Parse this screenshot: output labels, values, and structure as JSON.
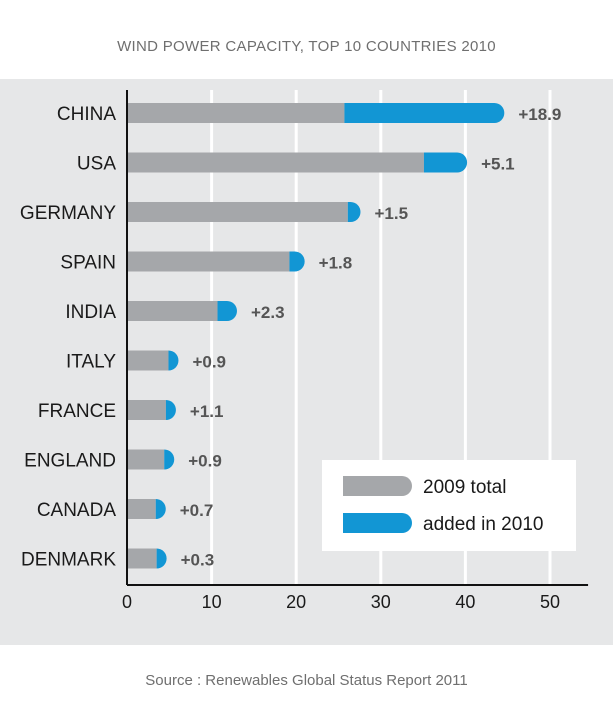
{
  "chart_data": {
    "type": "bar",
    "orientation": "horizontal",
    "stacked": true,
    "title": "WIND POWER CAPACITY, TOP 10 COUNTRIES 2010",
    "source": "Source : Renewables Global Status Report 2011",
    "categories": [
      "CHINA",
      "USA",
      "GERMANY",
      "SPAIN",
      "INDIA",
      "ITALY",
      "FRANCE",
      "ENGLAND",
      "CANADA",
      "DENMARK"
    ],
    "series": [
      {
        "name": "2009 total",
        "color": "#a5a7aa",
        "values": [
          25.7,
          35.1,
          26.1,
          19.2,
          10.7,
          4.9,
          4.6,
          4.4,
          3.4,
          3.5
        ]
      },
      {
        "name": "added in 2010",
        "color": "#1296d4",
        "values": [
          18.9,
          5.1,
          1.5,
          1.8,
          2.3,
          0.9,
          1.1,
          0.9,
          0.7,
          0.3
        ]
      }
    ],
    "value_labels": [
      "+18.9",
      "+5.1",
      "+1.5",
      "+1.8",
      "+2.3",
      "+0.9",
      "+1.1",
      "+0.9",
      "+0.7",
      "+0.3"
    ],
    "xticks": [
      "0",
      "10",
      "20",
      "30",
      "40",
      "50"
    ],
    "xlim": [
      0,
      55
    ],
    "grid": true,
    "legend_position": "bottom-right",
    "colors": {
      "plot_background": "#e6e7e8",
      "grid": "#ffffff",
      "axis": "#111111"
    }
  }
}
